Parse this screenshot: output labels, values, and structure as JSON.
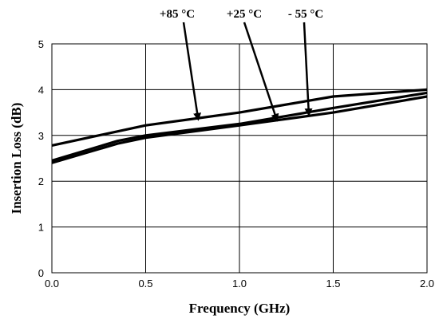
{
  "chart_data": {
    "type": "line",
    "title": "",
    "xlabel": "Frequency (GHz)",
    "ylabel": "Insertion Loss (dB)",
    "xlim": [
      0.0,
      2.0
    ],
    "ylim": [
      0,
      5
    ],
    "x_ticks": [
      "0.0",
      "0.5",
      "1.0",
      "1.5",
      "2.0"
    ],
    "y_ticks": [
      "0",
      "1",
      "2",
      "3",
      "4",
      "5"
    ],
    "grid": true,
    "legend": "none",
    "series": [
      {
        "name": "+85 °C",
        "points": [
          [
            0.0,
            2.78
          ],
          [
            0.5,
            3.22
          ],
          [
            1.0,
            3.5
          ],
          [
            1.5,
            3.85
          ],
          [
            2.0,
            4.0
          ]
        ]
      },
      {
        "name": "+25 °C",
        "points": [
          [
            0.0,
            2.45
          ],
          [
            0.35,
            2.88
          ],
          [
            0.5,
            3.0
          ],
          [
            1.0,
            3.25
          ],
          [
            1.5,
            3.6
          ],
          [
            2.0,
            3.93
          ]
        ]
      },
      {
        "name": "- 55 °C",
        "points": [
          [
            0.0,
            2.4
          ],
          [
            0.35,
            2.82
          ],
          [
            0.5,
            2.95
          ],
          [
            1.0,
            3.22
          ],
          [
            1.5,
            3.5
          ],
          [
            2.0,
            3.85
          ]
        ]
      }
    ],
    "annotations": [
      {
        "text": "+85 °C",
        "x": 0.78,
        "y": 3.35
      },
      {
        "text": "+25 °C",
        "x": 1.2,
        "y": 3.33
      },
      {
        "text": "- 55 °C",
        "x": 1.37,
        "y": 3.45
      }
    ]
  }
}
